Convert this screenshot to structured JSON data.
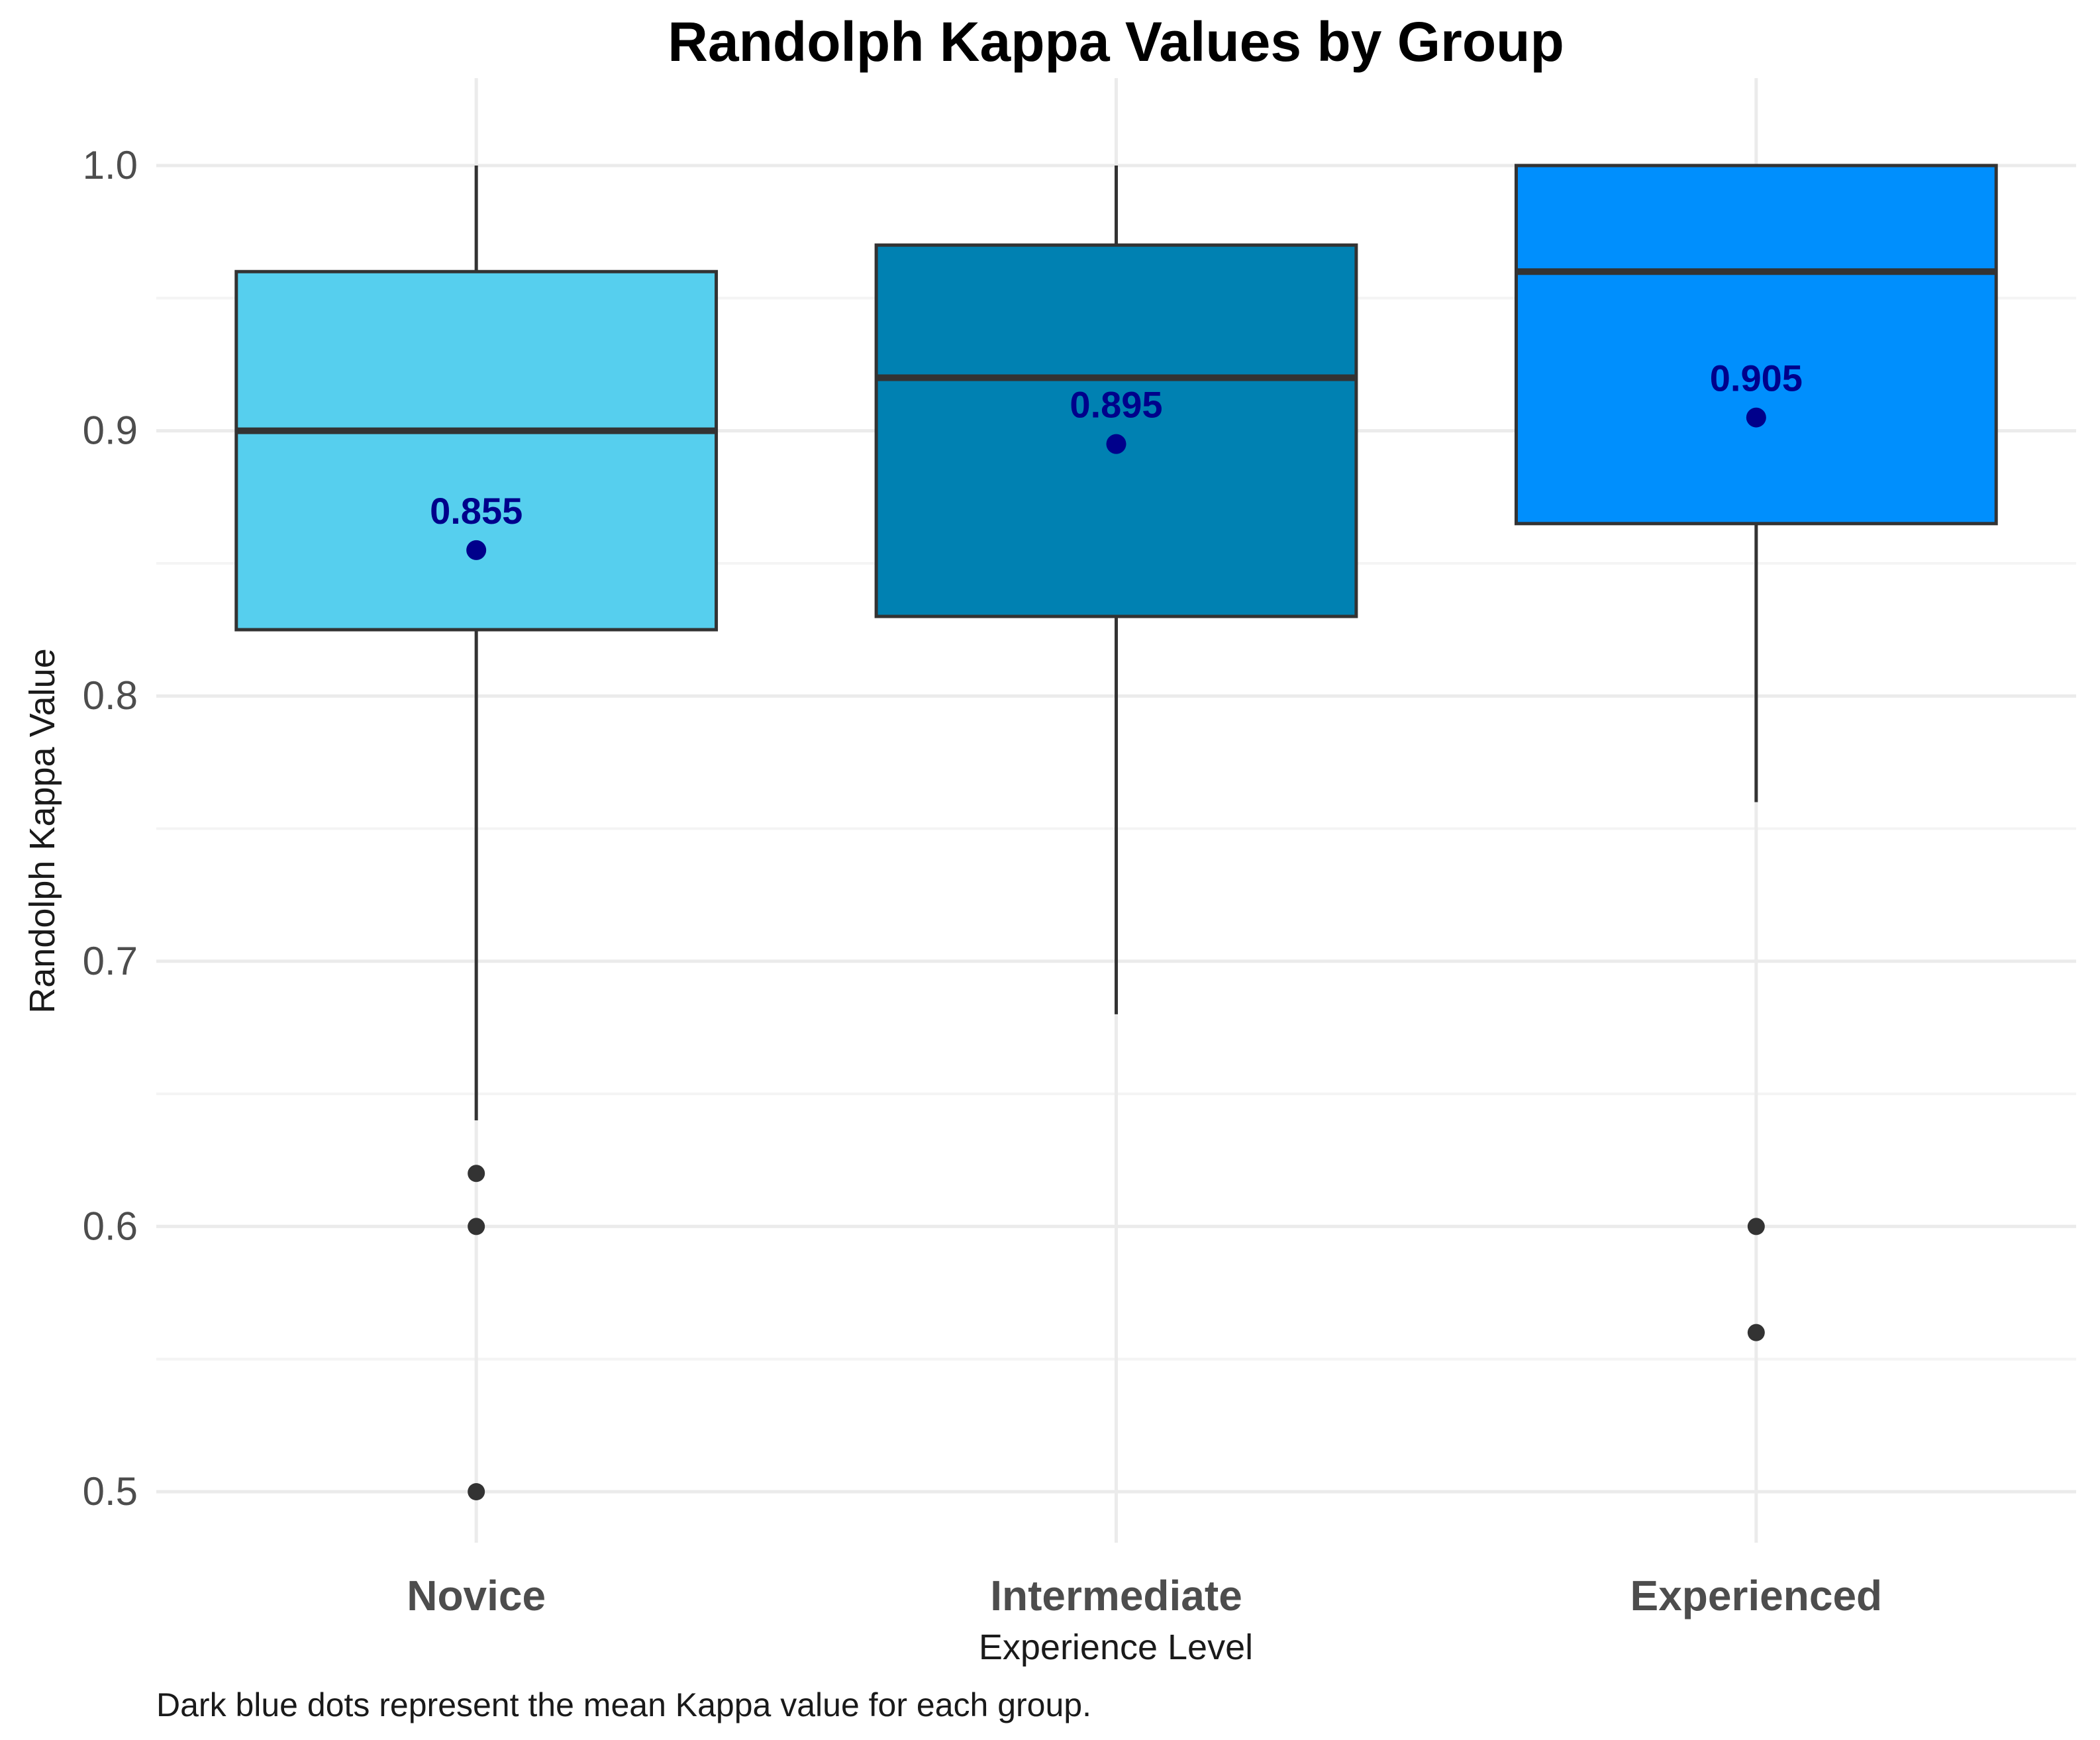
{
  "chart_data": {
    "type": "boxplot",
    "title": "Randolph Kappa Values by Group",
    "xlabel": "Experience Level",
    "ylabel": "Randolph Kappa Value",
    "caption": "Dark blue dots represent the mean Kappa value for each group.",
    "ylim": [
      0.465,
      1.025
    ],
    "yticks": [
      0.5,
      0.6,
      0.7,
      0.8,
      0.9,
      1.0
    ],
    "ytick_labels": [
      "0.5",
      "0.6",
      "0.7",
      "0.8",
      "0.9",
      "1.0"
    ],
    "yminor": [
      0.55,
      0.65,
      0.75,
      0.85,
      0.95
    ],
    "grid": true,
    "legend": "none",
    "mean_color": "#00008b",
    "median_color": "#333333",
    "groups": [
      {
        "name": "Novice",
        "color": "#56cfee",
        "whisker_low": 0.64,
        "q1": 0.825,
        "median": 0.9,
        "q3": 0.96,
        "whisker_high": 1.0,
        "mean": 0.855,
        "mean_label": "0.855",
        "outliers": [
          0.62,
          0.6,
          0.5
        ]
      },
      {
        "name": "Intermediate",
        "color": "#0081b2",
        "whisker_low": 0.68,
        "q1": 0.83,
        "median": 0.92,
        "q3": 0.97,
        "whisker_high": 1.0,
        "mean": 0.895,
        "mean_label": "0.895",
        "outliers": []
      },
      {
        "name": "Experienced",
        "color": "#008ffd",
        "whisker_low": 0.76,
        "q1": 0.865,
        "median": 0.96,
        "q3": 1.0,
        "whisker_high": 1.0,
        "mean": 0.905,
        "mean_label": "0.905",
        "outliers": [
          0.6,
          0.56
        ]
      }
    ]
  }
}
